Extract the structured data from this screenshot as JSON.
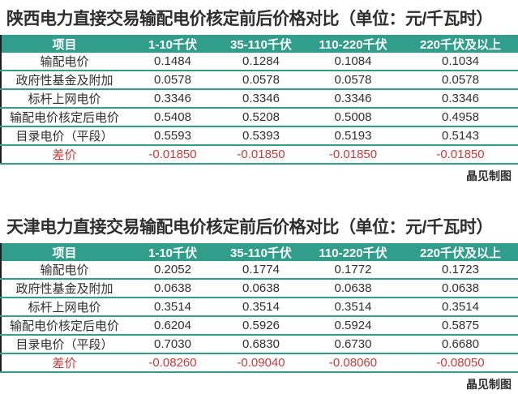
{
  "colors": {
    "header_teal": "#319e8b",
    "diff_red": "#cb3a3a",
    "title_dark": "#2e2e2e",
    "table_left_border": "#1d1d1d"
  },
  "chart_data": [
    {
      "type": "table",
      "title": "陕西电力直接交易输配电价核定前后价格对比（单位：元/千瓦时）",
      "credit": "晶见制图",
      "columns": [
        "项目",
        "1-10千伏",
        "35-110千伏",
        "110-220千伏",
        "220千伏及以上"
      ],
      "rows": [
        {
          "label": "输配电价",
          "values": [
            "0.1484",
            "0.1284",
            "0.1084",
            "0.1034"
          ]
        },
        {
          "label": "政府性基金及附加",
          "values": [
            "0.0578",
            "0.0578",
            "0.0578",
            "0.0578"
          ]
        },
        {
          "label": "标杆上网电价",
          "values": [
            "0.3346",
            "0.3346",
            "0.3346",
            "0.3346"
          ]
        },
        {
          "label": "输配电价核定后电价",
          "values": [
            "0.5408",
            "0.5208",
            "0.5008",
            "0.4958"
          ]
        },
        {
          "label": "目录电价（平段）",
          "values": [
            "0.5593",
            "0.5393",
            "0.5193",
            "0.5143"
          ]
        },
        {
          "label": "差价",
          "values": [
            "-0.01850",
            "-0.01850",
            "-0.01850",
            "-0.01850"
          ],
          "highlight": "red"
        }
      ]
    },
    {
      "type": "table",
      "title": "天津电力直接交易输配电价核定前后价格对比（单位：元/千瓦时）",
      "credit": "晶见制图",
      "columns": [
        "项目",
        "1-10千伏",
        "35-110千伏",
        "110-220千伏",
        "220千伏及以上"
      ],
      "rows": [
        {
          "label": "输配电价",
          "values": [
            "0.2052",
            "0.1774",
            "0.1772",
            "0.1723"
          ]
        },
        {
          "label": "政府性基金及附加",
          "values": [
            "0.0638",
            "0.0638",
            "0.0638",
            "0.0638"
          ]
        },
        {
          "label": "标杆上网电价",
          "values": [
            "0.3514",
            "0.3514",
            "0.3514",
            "0.3514"
          ]
        },
        {
          "label": "输配电价核定后电价",
          "values": [
            "0.6204",
            "0.5926",
            "0.5924",
            "0.5875"
          ]
        },
        {
          "label": "目录电价（平段）",
          "values": [
            "0.7030",
            "0.6830",
            "0.6730",
            "0.6680"
          ]
        },
        {
          "label": "差价",
          "values": [
            "-0.08260",
            "-0.09040",
            "-0.08060",
            "-0.08050"
          ],
          "highlight": "red"
        }
      ]
    }
  ]
}
